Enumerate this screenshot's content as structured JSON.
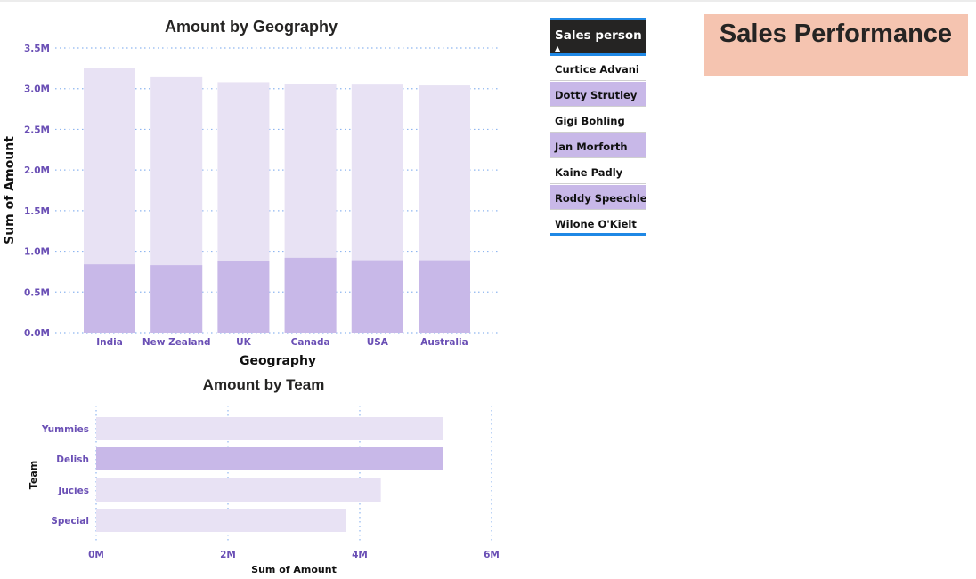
{
  "report": {
    "title": "Sales Performance"
  },
  "slicer": {
    "header": "Sales person",
    "items": [
      {
        "label": "Curtice Advani",
        "selected": false
      },
      {
        "label": "Dotty Strutley",
        "selected": true
      },
      {
        "label": "Gigi Bohling",
        "selected": false
      },
      {
        "label": "Jan Morforth",
        "selected": true
      },
      {
        "label": "Kaine Padly",
        "selected": false
      },
      {
        "label": "Roddy Speechley",
        "selected": true
      },
      {
        "label": "Wilone O'Kielt",
        "selected": false
      }
    ]
  },
  "colors": {
    "highlight": "#c8b8e8",
    "background_bar": "#e8e2f4",
    "tick_text": "#6a4fb5",
    "grid": "#8fb6f0"
  },
  "chart_data": [
    {
      "type": "bar",
      "title": "Amount by Geography",
      "xlabel": "Geography",
      "ylabel": "Sum of Amount",
      "categories": [
        "India",
        "New Zealand",
        "UK",
        "Canada",
        "USA",
        "Australia"
      ],
      "series": [
        {
          "values": [
            3.25,
            3.14,
            3.08,
            3.06,
            3.05,
            3.04
          ]
        },
        {
          "values": [
            0.84,
            0.83,
            0.88,
            0.92,
            0.89,
            0.89
          ]
        }
      ],
      "yticks": [
        "0.0M",
        "0.5M",
        "1.0M",
        "1.5M",
        "2.0M",
        "2.5M",
        "3.0M",
        "3.5M"
      ],
      "ylim": [
        0,
        3.5
      ],
      "unit": "M",
      "grid": true
    },
    {
      "type": "bar",
      "orientation": "horizontal",
      "title": "Amount by Team",
      "xlabel": "Sum of Amount",
      "ylabel": "Team",
      "categories": [
        "Yummies",
        "Delish",
        "Jucies",
        "Special"
      ],
      "values": [
        5.27,
        5.27,
        4.32,
        3.79
      ],
      "highlighted": [
        false,
        true,
        false,
        false
      ],
      "xticks": [
        "0M",
        "2M",
        "4M",
        "6M"
      ],
      "xlim": [
        0,
        6
      ],
      "unit": "M",
      "grid": true
    }
  ]
}
